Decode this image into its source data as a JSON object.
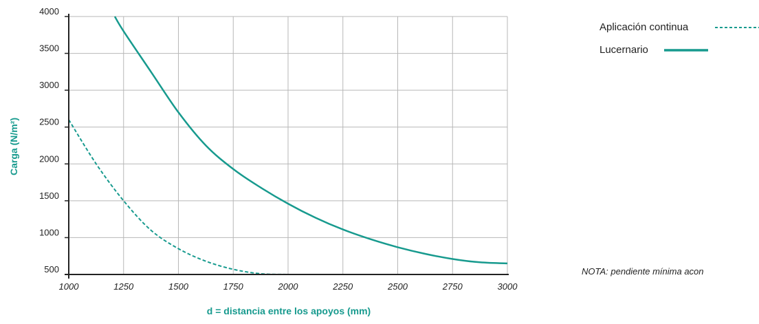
{
  "chart_data": {
    "type": "line",
    "title": "",
    "xlabel": "d = distancia entre los apoyos (mm)",
    "ylabel": "Carga (N/m²)",
    "xlim": [
      1000,
      3000
    ],
    "ylim": [
      500,
      4000
    ],
    "x_ticks": [
      1000,
      1250,
      1500,
      1750,
      2000,
      2250,
      2500,
      2750,
      3000
    ],
    "y_ticks": [
      500,
      1000,
      1500,
      2000,
      2500,
      3000,
      3500,
      4000
    ],
    "grid": true,
    "legend_position": "top-right",
    "series": [
      {
        "name": "Aplicación continua",
        "style": "dashed",
        "color": "#179a8e",
        "x": [
          1000,
          1125,
          1250,
          1375,
          1500,
          1625,
          1750,
          1875,
          2000
        ],
        "y": [
          2600,
          2000,
          1500,
          1100,
          850,
          680,
          570,
          510,
          500
        ]
      },
      {
        "name": "Lucernario",
        "style": "solid",
        "color": "#179a8e",
        "x": [
          1210,
          1250,
          1375,
          1500,
          1625,
          1750,
          1875,
          2000,
          2125,
          2250,
          2375,
          2500,
          2625,
          2750,
          2875,
          3000
        ],
        "y": [
          4000,
          3800,
          3250,
          2700,
          2250,
          1930,
          1680,
          1460,
          1270,
          1110,
          980,
          870,
          780,
          710,
          665,
          650
        ]
      }
    ],
    "note": "NOTA: pendiente mínima acon"
  }
}
